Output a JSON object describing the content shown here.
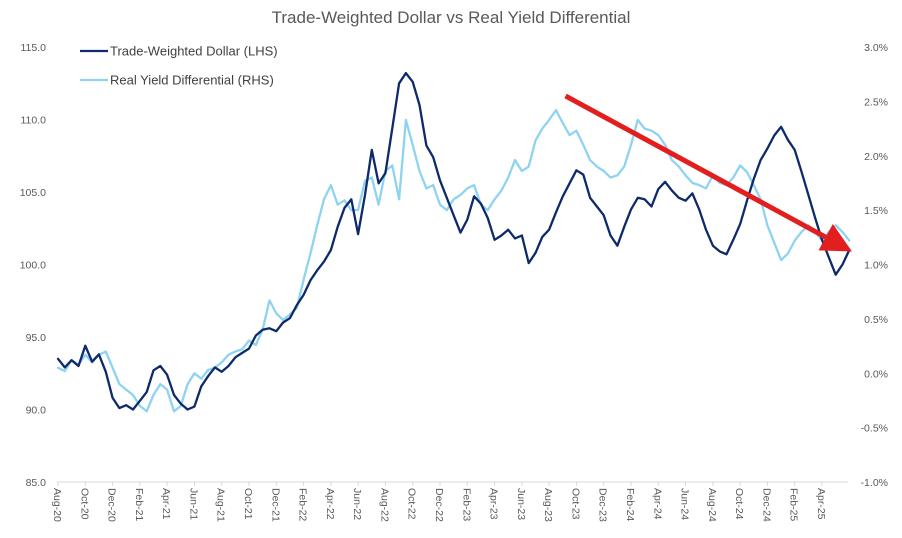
{
  "chart_data": {
    "type": "line",
    "title": "Trade-Weighted Dollar vs Real Yield Differential",
    "xlabel": "",
    "ylabel_left": "",
    "ylabel_right": "",
    "left_axis": {
      "ylim": [
        85,
        115
      ],
      "ticks": [
        85,
        90,
        95,
        100,
        105,
        110,
        115
      ],
      "tick_labels": [
        "85.0",
        "90.0",
        "95.0",
        "100.0",
        "105.0",
        "110.0",
        "115.0"
      ]
    },
    "right_axis": {
      "ylim": [
        -1.0,
        3.0
      ],
      "ticks": [
        -1.0,
        -0.5,
        0.0,
        0.5,
        1.0,
        1.5,
        2.0,
        2.5,
        3.0
      ],
      "tick_labels": [
        "-1.0%",
        "-0.5%",
        "0.0%",
        "0.5%",
        "1.0%",
        "1.5%",
        "2.0%",
        "2.5%",
        "3.0%"
      ]
    },
    "x_axis": {
      "start": "Aug-20",
      "months_span": 58,
      "tick_labels": [
        "Aug-20",
        "Oct-20",
        "Dec-20",
        "Feb-21",
        "Apr-21",
        "Jun-21",
        "Aug-21",
        "Oct-21",
        "Dec-21",
        "Feb-22",
        "Apr-22",
        "Jun-22",
        "Aug-22",
        "Oct-22",
        "Dec-22",
        "Feb-23",
        "Apr-23",
        "Jun-23",
        "Aug-23",
        "Oct-23",
        "Dec-23",
        "Feb-24",
        "Apr-24",
        "Jun-24",
        "Aug-24",
        "Oct-24",
        "Dec-24",
        "Feb-25",
        "Apr-25"
      ],
      "tick_month_offsets": [
        0,
        2,
        4,
        6,
        8,
        10,
        12,
        14,
        16,
        18,
        20,
        22,
        24,
        26,
        28,
        30,
        32,
        34,
        36,
        38,
        40,
        42,
        44,
        46,
        48,
        50,
        52,
        54,
        56
      ]
    },
    "grid": false,
    "legend": {
      "position": "top-left",
      "entries": [
        "Trade-Weighted Dollar (LHS)",
        "Real Yield Differential (RHS)"
      ]
    },
    "series": [
      {
        "name": "Trade-Weighted Dollar (LHS)",
        "axis": "left",
        "color": "#0E2A6B",
        "month_offsets": [
          0,
          0.5,
          1,
          1.5,
          2,
          2.5,
          3,
          3.5,
          4,
          4.5,
          5,
          5.5,
          6,
          6.5,
          7,
          7.5,
          8,
          8.5,
          9,
          9.5,
          10,
          10.5,
          11,
          11.5,
          12,
          12.5,
          13,
          13.5,
          14,
          14.5,
          15,
          15.5,
          16,
          16.5,
          17,
          17.5,
          18,
          18.5,
          19,
          19.5,
          20,
          20.5,
          21,
          21.5,
          22,
          22.5,
          23,
          23.5,
          24,
          24.5,
          25,
          25.5,
          26,
          26.5,
          27,
          27.5,
          28,
          28.5,
          29,
          29.5,
          30,
          30.5,
          31,
          31.5,
          32,
          32.5,
          33,
          33.5,
          34,
          34.5,
          35,
          35.5,
          36,
          36.5,
          37,
          37.5,
          38,
          38.5,
          39,
          39.5,
          40,
          40.5,
          41,
          41.5,
          42,
          42.5,
          43,
          43.5,
          44,
          44.5,
          45,
          45.5,
          46,
          46.5,
          47,
          47.5,
          48,
          48.5,
          49,
          49.5,
          50,
          50.5,
          51,
          51.5,
          52,
          52.5,
          53,
          53.5,
          54,
          54.5,
          55,
          55.5,
          56,
          56.5,
          57,
          57.5,
          58
        ],
        "values": [
          93.5,
          92.9,
          93.4,
          93.0,
          94.4,
          93.3,
          93.8,
          92.6,
          90.8,
          90.1,
          90.3,
          90.0,
          90.6,
          91.2,
          92.7,
          93.0,
          92.4,
          91.0,
          90.4,
          90.0,
          90.2,
          91.6,
          92.3,
          92.9,
          92.6,
          93.0,
          93.6,
          93.9,
          94.2,
          95.1,
          95.5,
          95.6,
          95.4,
          96.0,
          96.3,
          97.2,
          97.9,
          98.9,
          99.6,
          100.2,
          101.0,
          102.6,
          103.9,
          104.5,
          102.1,
          104.8,
          107.9,
          105.6,
          106.3,
          109.4,
          112.5,
          113.2,
          112.6,
          111.0,
          108.2,
          107.4,
          105.8,
          104.6,
          103.4,
          102.2,
          103.1,
          104.7,
          104.2,
          103.2,
          101.7,
          102.0,
          102.4,
          101.8,
          102.0,
          100.1,
          100.8,
          101.9,
          102.4,
          103.6,
          104.7,
          105.6,
          106.5,
          106.2,
          104.6,
          104.0,
          103.4,
          102.0,
          101.3,
          102.6,
          103.8,
          104.6,
          104.5,
          104.0,
          105.2,
          105.7,
          105.1,
          104.6,
          104.4,
          104.9,
          103.8,
          102.4,
          101.3,
          100.9,
          100.7,
          101.7,
          102.8,
          104.4,
          105.9,
          107.2,
          108.0,
          108.9,
          109.5,
          108.6,
          107.9,
          106.4,
          104.8,
          103.2,
          101.7,
          100.5,
          99.3,
          100.0,
          101.0,
          99.6,
          99.1
        ]
      },
      {
        "name": "Real Yield Differential (RHS)",
        "axis": "right",
        "color": "#8FD3F2",
        "month_offsets": [
          0,
          0.5,
          1,
          1.5,
          2,
          2.5,
          3,
          3.5,
          4,
          4.5,
          5,
          5.5,
          6,
          6.5,
          7,
          7.5,
          8,
          8.5,
          9,
          9.5,
          10,
          10.5,
          11,
          11.5,
          12,
          12.5,
          13,
          13.5,
          14,
          14.5,
          15,
          15.5,
          16,
          16.5,
          17,
          17.5,
          18,
          18.5,
          19,
          19.5,
          20,
          20.5,
          21,
          21.5,
          22,
          22.5,
          23,
          23.5,
          24,
          24.5,
          25,
          25.5,
          26,
          26.5,
          27,
          27.5,
          28,
          28.5,
          29,
          29.5,
          30,
          30.5,
          31,
          31.5,
          32,
          32.5,
          33,
          33.5,
          34,
          34.5,
          35,
          35.5,
          36,
          36.5,
          37,
          37.5,
          38,
          38.5,
          39,
          39.5,
          40,
          40.5,
          41,
          41.5,
          42,
          42.5,
          43,
          43.5,
          44,
          44.5,
          45,
          45.5,
          46,
          46.5,
          47,
          47.5,
          48,
          48.5,
          49,
          49.5,
          50,
          50.5,
          51,
          51.5,
          52,
          52.5,
          53,
          53.5,
          54,
          54.5,
          55,
          55.5,
          56,
          56.5,
          57,
          57.5,
          58
        ],
        "values": [
          0.05,
          0.02,
          0.12,
          0.08,
          0.17,
          0.1,
          0.17,
          0.2,
          0.05,
          -0.1,
          -0.15,
          -0.2,
          -0.3,
          -0.35,
          -0.2,
          -0.1,
          -0.15,
          -0.35,
          -0.3,
          -0.1,
          0.0,
          -0.05,
          0.03,
          0.05,
          0.1,
          0.17,
          0.2,
          0.22,
          0.3,
          0.26,
          0.4,
          0.67,
          0.55,
          0.49,
          0.54,
          0.6,
          0.86,
          1.1,
          1.36,
          1.6,
          1.73,
          1.55,
          1.59,
          1.5,
          1.5,
          1.77,
          1.8,
          1.55,
          1.86,
          1.91,
          1.6,
          2.33,
          2.1,
          1.86,
          1.7,
          1.73,
          1.55,
          1.5,
          1.6,
          1.64,
          1.7,
          1.73,
          1.55,
          1.5,
          1.6,
          1.68,
          1.8,
          1.96,
          1.86,
          1.9,
          2.14,
          2.25,
          2.33,
          2.42,
          2.3,
          2.19,
          2.23,
          2.1,
          1.96,
          1.9,
          1.86,
          1.8,
          1.82,
          1.9,
          2.1,
          2.33,
          2.25,
          2.23,
          2.19,
          2.1,
          1.96,
          1.9,
          1.82,
          1.75,
          1.73,
          1.7,
          1.82,
          1.75,
          1.73,
          1.8,
          1.91,
          1.85,
          1.73,
          1.6,
          1.36,
          1.2,
          1.04,
          1.1,
          1.22,
          1.3,
          1.36,
          1.3,
          1.22,
          1.3,
          1.36,
          1.3,
          1.22
        ]
      }
    ],
    "annotations": [
      {
        "type": "arrow",
        "color": "#E31E1E",
        "description": "Downward trend arrow from Sep-23 peak region to Jun-25",
        "start": {
          "month_offset": 37.2,
          "right_value": 2.55
        },
        "end": {
          "month_offset": 58.2,
          "right_value": 1.12
        }
      }
    ]
  }
}
